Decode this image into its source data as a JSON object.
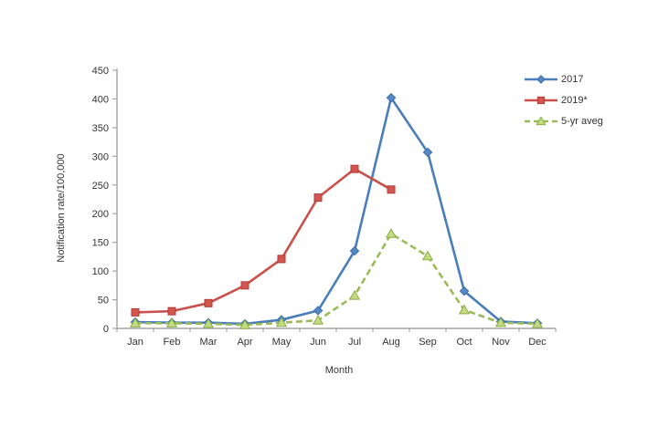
{
  "chart_data": {
    "type": "line",
    "title": "",
    "xlabel": "Month",
    "ylabel": "Notification rate/100,000",
    "ylim": [
      0,
      450
    ],
    "ytick_step": 50,
    "yticks": [
      0,
      50,
      100,
      150,
      200,
      250,
      300,
      350,
      400,
      450
    ],
    "grid": false,
    "legend_position": "top-right",
    "categories": [
      "Jan",
      "Feb",
      "Mar",
      "Apr",
      "May",
      "Jun",
      "Jul",
      "Aug",
      "Sep",
      "Oct",
      "Nov",
      "Dec"
    ],
    "series": [
      {
        "name": "2017",
        "color": "#4A7EBB",
        "marker": "diamond",
        "marker_fill": "#5588C4",
        "marker_stroke": "#3C6DA8",
        "line_style": "solid",
        "values": [
          11,
          10,
          10,
          8,
          15,
          31,
          135,
          402,
          307,
          65,
          12,
          9
        ]
      },
      {
        "name": "2019*",
        "color": "#C9504B",
        "marker": "square",
        "marker_fill": "#D5564F",
        "marker_stroke": "#B03A37",
        "line_style": "solid",
        "values": [
          28,
          30,
          44,
          75,
          121,
          228,
          278,
          242,
          null,
          null,
          null,
          null
        ]
      },
      {
        "name": "5-yr aveg",
        "color": "#9BBB59",
        "marker": "triangle",
        "marker_fill": "#C3DC7F",
        "marker_stroke": "#8AAD4A",
        "line_style": "dashed",
        "values": [
          9,
          9,
          8,
          6,
          10,
          14,
          57,
          165,
          126,
          32,
          10,
          8
        ]
      }
    ],
    "style": {
      "axis_color": "#A6A6A6",
      "text_color": "#333333",
      "background": "#FFFFFF"
    }
  }
}
